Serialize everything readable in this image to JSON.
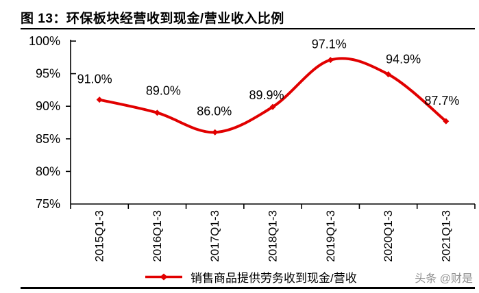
{
  "figure": {
    "title": "图 13：环保板块经营收到现金/营业收入比例",
    "watermark": "头条 @财是"
  },
  "legend": {
    "label": "销售商品提供劳务收到现金/营收"
  },
  "chart_data": {
    "type": "line",
    "title": "环保板块经营收到现金/营业收入比例",
    "categories": [
      "2015Q1-3",
      "2016Q1-3",
      "2017Q1-3",
      "2018Q1-3",
      "2019Q1-3",
      "2020Q1-3",
      "2021Q1-3"
    ],
    "series": [
      {
        "name": "销售商品提供劳务收到现金/营收",
        "values": [
          91.0,
          89.0,
          86.0,
          89.9,
          97.1,
          94.9,
          87.7
        ]
      }
    ],
    "data_labels": [
      "91.0%",
      "89.0%",
      "86.0%",
      "89.9%",
      "97.1%",
      "94.9%",
      "87.7%"
    ],
    "y_tick_labels": [
      "100%",
      "95%",
      "90%",
      "85%",
      "80%",
      "75%"
    ],
    "ylim": [
      75,
      100
    ],
    "xlabel": "",
    "ylabel": "",
    "grid": false,
    "smooth": true,
    "marker": "diamond",
    "legend_position": "bottom",
    "line_color": "#e10000",
    "axis_color": "#000000"
  }
}
